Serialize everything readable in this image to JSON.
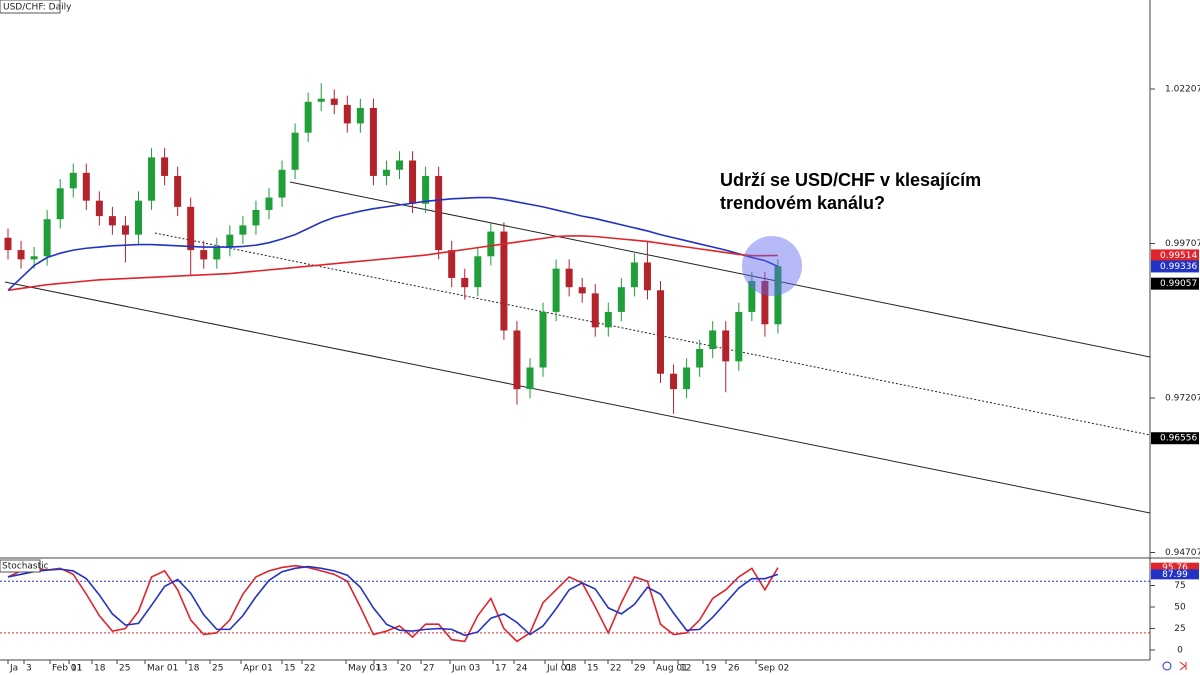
{
  "chart_data": [
    {
      "type": "candlestick",
      "title": "USD/CHF: Daily",
      "annotation": [
        "Udrží se USD/CHF v klesajícím",
        "trendovém kanálu?"
      ],
      "x_labels": [
        "Ja",
        "3",
        "Feb 01",
        "11",
        "18",
        "25",
        "Mar 01",
        "18",
        "25",
        "Apr 01",
        "15",
        "22",
        "May 01",
        "13",
        "20",
        "27",
        "Jun 03",
        "17",
        "24",
        "Jul 01",
        "08",
        "15",
        "22",
        "29",
        "Aug 01",
        "12",
        "19",
        "26",
        "Sep 02"
      ],
      "open": [
        0.998,
        0.996,
        0.9945,
        0.995,
        1.001,
        1.006,
        1.0085,
        1.004,
        1.0015,
        1.0,
        0.9985,
        1.004,
        1.011,
        1.008,
        1.003,
        0.996,
        0.9945,
        0.9965,
        0.9985,
        1.0,
        1.0025,
        1.0045,
        1.009,
        1.015,
        1.02,
        1.0205,
        1.0195,
        1.0165,
        1.019,
        1.008,
        1.009,
        1.0105,
        1.0035,
        1.008,
        0.996,
        0.9915,
        0.99,
        0.995,
        0.999,
        0.983,
        0.9735,
        0.977,
        0.986,
        0.993,
        0.99,
        0.989,
        0.9835,
        0.986,
        0.99,
        0.994,
        0.9895,
        0.976,
        0.9735,
        0.977,
        0.98,
        0.983,
        0.978,
        0.986,
        0.991,
        0.984
      ],
      "high": [
        0.9995,
        0.9975,
        0.9965,
        1.0025,
        1.0075,
        1.01,
        1.01,
        1.0055,
        1.003,
        1.0015,
        1.0055,
        1.0125,
        1.0125,
        1.0095,
        1.0045,
        0.9975,
        0.998,
        1.0,
        1.0015,
        1.004,
        1.006,
        1.0105,
        1.0165,
        1.0215,
        1.023,
        1.022,
        1.021,
        1.0205,
        1.0205,
        1.0105,
        1.012,
        1.012,
        1.0095,
        1.0095,
        0.9975,
        0.993,
        0.9965,
        1.0005,
        1.0005,
        0.9845,
        0.9785,
        0.9875,
        0.9945,
        0.9945,
        0.9915,
        0.9905,
        0.9875,
        0.9915,
        0.9955,
        0.9975,
        0.991,
        0.9775,
        0.9785,
        0.9815,
        0.9845,
        0.9845,
        0.9875,
        0.9925,
        0.9925,
        0.9945
      ],
      "low": [
        0.9945,
        0.993,
        0.993,
        0.9935,
        0.9995,
        1.0045,
        1.0025,
        1.0,
        0.9985,
        0.994,
        0.997,
        1.0025,
        1.0065,
        1.0015,
        0.992,
        0.993,
        0.993,
        0.995,
        0.997,
        0.9985,
        1.001,
        1.003,
        1.0075,
        1.0135,
        1.0185,
        1.018,
        1.015,
        1.015,
        1.0065,
        1.0065,
        1.0075,
        1.002,
        1.002,
        0.9945,
        0.99,
        0.988,
        0.9885,
        0.9935,
        0.9815,
        0.971,
        0.972,
        0.9755,
        0.9845,
        0.9885,
        0.9875,
        0.982,
        0.982,
        0.9845,
        0.9885,
        0.988,
        0.9745,
        0.9695,
        0.972,
        0.9755,
        0.9785,
        0.973,
        0.9765,
        0.9845,
        0.982,
        0.9825
      ],
      "close": [
        0.996,
        0.9945,
        0.995,
        1.001,
        1.006,
        1.0085,
        1.004,
        1.0015,
        1.0,
        0.9985,
        1.004,
        1.011,
        1.008,
        1.003,
        0.996,
        0.9945,
        0.9965,
        0.9985,
        1.0,
        1.0025,
        1.0045,
        1.009,
        1.015,
        1.02,
        1.0205,
        1.0195,
        1.0165,
        1.019,
        1.008,
        1.009,
        1.0105,
        1.0035,
        1.008,
        0.996,
        0.9915,
        0.99,
        0.995,
        0.999,
        0.983,
        0.9735,
        0.977,
        0.986,
        0.993,
        0.99,
        0.989,
        0.9835,
        0.986,
        0.99,
        0.994,
        0.9895,
        0.976,
        0.9735,
        0.977,
        0.98,
        0.983,
        0.978,
        0.986,
        0.991,
        0.984,
        0.9934
      ],
      "up_color": "#1f9e3a",
      "down_color": "#b3232b",
      "series": [
        {
          "color": "#2233c4",
          "values": [
            0.9895,
            0.9915,
            0.9935,
            0.9948,
            0.9955,
            0.996,
            0.9963,
            0.9965,
            0.9967,
            0.9968,
            0.9969,
            0.9969,
            0.9968,
            0.9967,
            0.9966,
            0.9965,
            0.9965,
            0.9965,
            0.9966,
            0.9968,
            0.9972,
            0.9978,
            0.9985,
            0.9995,
            1.0005,
            1.0013,
            1.0018,
            1.0023,
            1.0027,
            1.003,
            1.0033,
            1.0036,
            1.0039,
            1.0041,
            1.0043,
            1.0044,
            1.0045,
            1.0045,
            1.0042,
            1.0038,
            1.0034,
            1.003,
            1.0025,
            1.002,
            1.0015,
            1.0011,
            1.0006,
            1.0001,
            0.9996,
            0.9991,
            0.9985,
            0.998,
            0.9975,
            0.997,
            0.9965,
            0.996,
            0.9954,
            0.9948,
            0.9943,
            0.99336
          ]
        },
        {
          "color": "#e0242b",
          "values": [
            0.9895,
            0.9898,
            0.9901,
            0.9904,
            0.9906,
            0.9908,
            0.991,
            0.9912,
            0.9913,
            0.9914,
            0.9915,
            0.9916,
            0.9917,
            0.9918,
            0.9919,
            0.992,
            0.9921,
            0.9922,
            0.9924,
            0.9926,
            0.9928,
            0.993,
            0.9932,
            0.9934,
            0.9936,
            0.9938,
            0.994,
            0.9942,
            0.9944,
            0.9946,
            0.9948,
            0.995,
            0.9952,
            0.9955,
            0.9958,
            0.9961,
            0.9964,
            0.9967,
            0.997,
            0.9973,
            0.9976,
            0.9979,
            0.9982,
            0.9983,
            0.9983,
            0.9982,
            0.998,
            0.9978,
            0.9976,
            0.9974,
            0.9971,
            0.9968,
            0.9965,
            0.9962,
            0.9959,
            0.9956,
            0.9953,
            0.9951,
            0.9951,
            0.99514
          ]
        }
      ],
      "price_tags": [
        {
          "value": 0.99514,
          "color": "#e0242b"
        },
        {
          "value": 0.99336,
          "color": "#2233c4"
        },
        {
          "value": 0.99057,
          "color": "#000000"
        },
        {
          "value": 0.96556,
          "color": "#000000"
        }
      ],
      "ylim": [
        0.94618,
        1.03647
      ],
      "yticks": [
        1.02207,
        0.99707,
        0.97207,
        0.94707
      ]
    },
    {
      "type": "line",
      "title": "Stochastic",
      "series": [
        {
          "color": "#e0242b",
          "values": [
            85,
            92,
            95,
            93,
            95,
            88,
            65,
            40,
            22,
            25,
            45,
            85,
            92,
            70,
            35,
            18,
            20,
            35,
            65,
            85,
            92,
            96,
            98,
            96,
            92,
            88,
            80,
            50,
            18,
            22,
            28,
            15,
            30,
            30,
            12,
            10,
            40,
            60,
            25,
            10,
            20,
            55,
            70,
            85,
            78,
            50,
            20,
            55,
            85,
            80,
            30,
            18,
            20,
            35,
            60,
            70,
            85,
            95,
            70,
            95.76
          ]
        },
        {
          "color": "#2233c4",
          "values": [
            85,
            88,
            91,
            93,
            94,
            92,
            83,
            64,
            42,
            29,
            31,
            52,
            74,
            82,
            66,
            41,
            24,
            24,
            40,
            62,
            81,
            91,
            95,
            97,
            95,
            92,
            87,
            73,
            49,
            30,
            23,
            22,
            24,
            25,
            24,
            17,
            21,
            37,
            42,
            32,
            18,
            28,
            48,
            70,
            78,
            71,
            49,
            42,
            53,
            73,
            65,
            43,
            23,
            24,
            38,
            55,
            72,
            83,
            83,
            87.99
          ]
        }
      ],
      "levels": [
        {
          "value": 80,
          "color": "#2233c4"
        },
        {
          "value": 20,
          "color": "#e0242b"
        }
      ],
      "ylim": [
        -11.6,
        107
      ],
      "yticks": [
        75,
        50,
        25,
        0
      ]
    }
  ]
}
